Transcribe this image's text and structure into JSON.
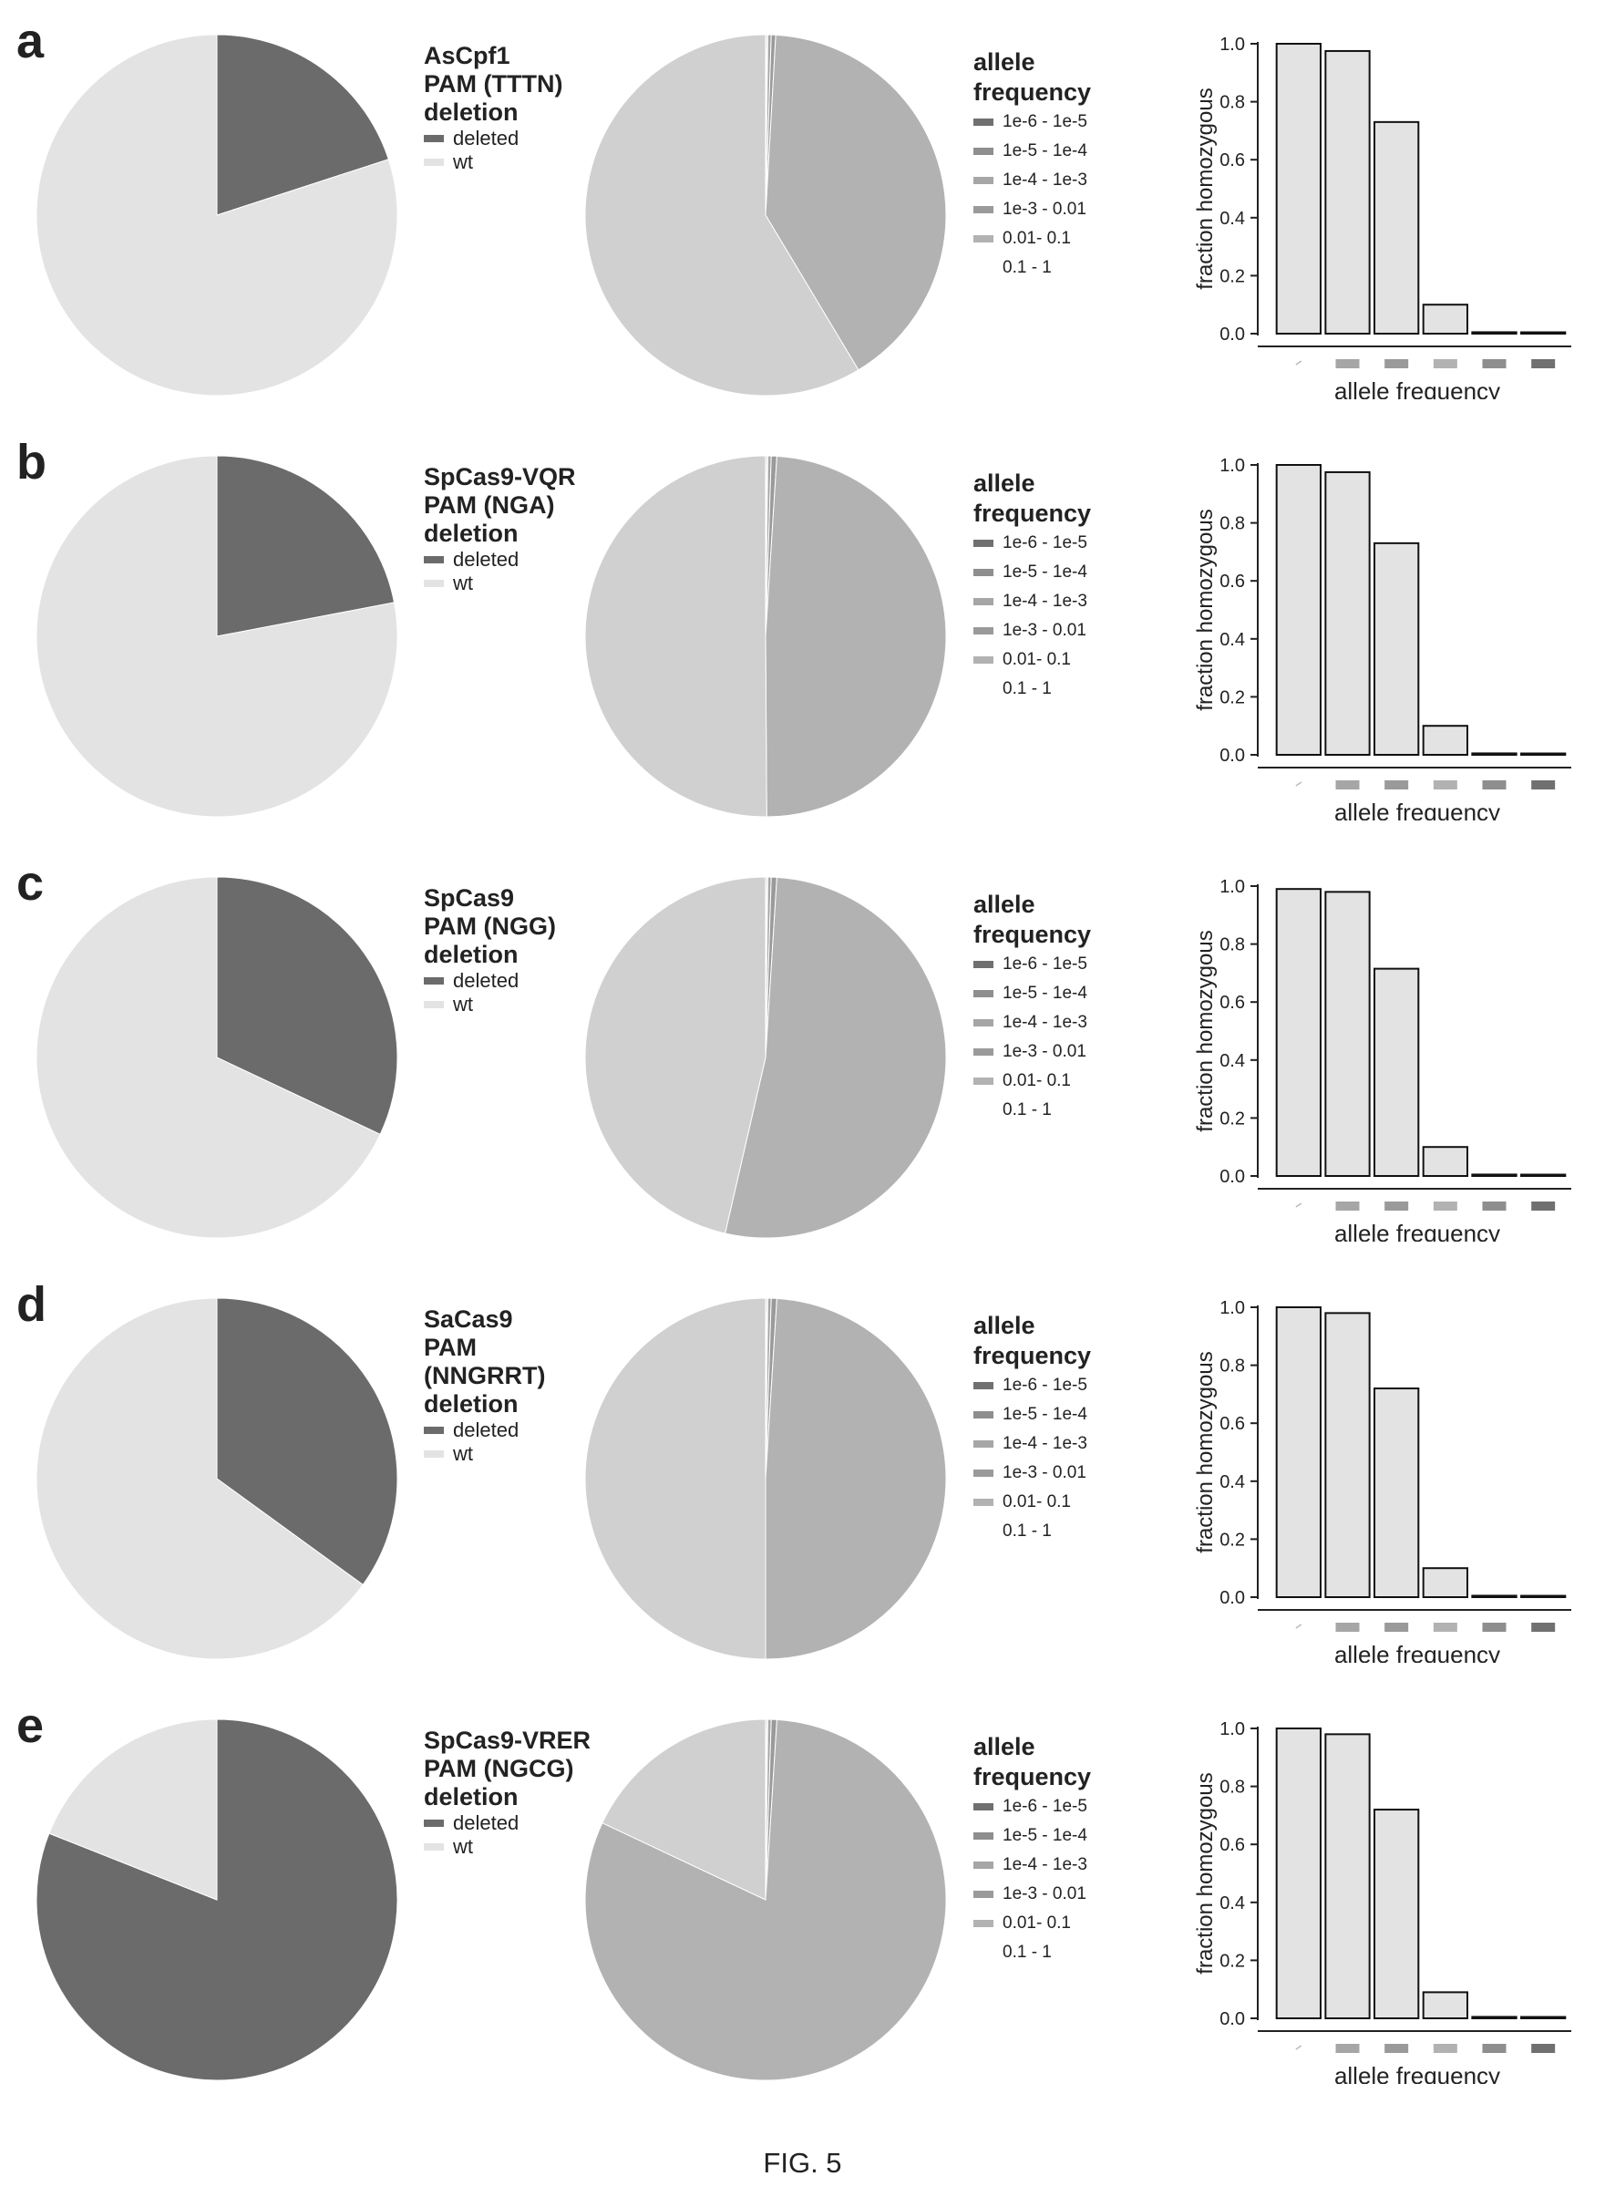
{
  "figure_caption": "FIG. 5",
  "colors": {
    "deleted": "#6b6b6b",
    "wt": "#e3e3e3",
    "freq": [
      "#707070",
      "#8e8e8e",
      "#a6a6a6",
      "#9a9a9a",
      "#b2b2b2",
      "#d0d0d0"
    ],
    "bar_fill": "#e3e3e3",
    "bar_stroke": "#111111"
  },
  "allele_legend": {
    "title_line1": "allele",
    "title_line2": "frequency",
    "items": [
      "1e-6 - 1e-5",
      "1e-5 - 1e-4",
      "1e-4 - 1e-3",
      "1e-3 - 0.01",
      "0.01- 0.1",
      "0.1 - 1"
    ]
  },
  "deletion_legend": {
    "deleted": "deleted",
    "wt": "wt"
  },
  "panels": [
    {
      "letter": "a",
      "title_lines": [
        "AsCpf1",
        "PAM (TTTN)",
        "deletion"
      ]
    },
    {
      "letter": "b",
      "title_lines": [
        "SpCas9-VQR",
        "PAM (NGA)",
        "deletion"
      ]
    },
    {
      "letter": "c",
      "title_lines": [
        "SpCas9",
        "PAM (NGG)",
        "deletion"
      ]
    },
    {
      "letter": "d",
      "title_lines": [
        "SaCas9",
        "PAM",
        "(NNGRRT)",
        "deletion"
      ]
    },
    {
      "letter": "e",
      "title_lines": [
        "SpCas9-VRER",
        "PAM (NGCG)",
        "deletion"
      ]
    }
  ],
  "chart_data": [
    {
      "type": "pie",
      "panel": "a",
      "chart": "deletion",
      "labels": [
        "deleted",
        "wt"
      ],
      "values": [
        20,
        80
      ]
    },
    {
      "type": "pie",
      "panel": "a",
      "chart": "allele frequency",
      "labels": [
        "1e-6 - 1e-5",
        "1e-5 - 1e-4",
        "1e-4 - 1e-3",
        "1e-3 - 0.01",
        "0.01- 0.1",
        "0.1 - 1"
      ],
      "values": [
        0.1,
        0.1,
        0.3,
        0.4,
        40.5,
        58.6
      ]
    },
    {
      "type": "bar",
      "panel": "a",
      "xlabel": "allele frequency",
      "ylabel": "fraction homozygous",
      "ylim": [
        0,
        1.0
      ],
      "yticks": [
        "0.0",
        "0.2",
        "0.4",
        "0.6",
        "0.8",
        "1.0"
      ],
      "values": [
        1.0,
        0.975,
        0.73,
        0.1,
        0.005,
        0.002
      ]
    },
    {
      "type": "pie",
      "panel": "b",
      "chart": "deletion",
      "labels": [
        "deleted",
        "wt"
      ],
      "values": [
        22,
        78
      ]
    },
    {
      "type": "pie",
      "panel": "b",
      "chart": "allele frequency",
      "labels": [
        "1e-6 - 1e-5",
        "1e-5 - 1e-4",
        "1e-4 - 1e-3",
        "1e-3 - 0.01",
        "0.01- 0.1",
        "0.1 - 1"
      ],
      "values": [
        0.1,
        0.1,
        0.3,
        0.5,
        48.9,
        50.1
      ]
    },
    {
      "type": "bar",
      "panel": "b",
      "xlabel": "allele frequency",
      "ylabel": "fraction homozygous",
      "ylim": [
        0,
        1.0
      ],
      "yticks": [
        "0.0",
        "0.2",
        "0.4",
        "0.6",
        "0.8",
        "1.0"
      ],
      "values": [
        1.0,
        0.975,
        0.73,
        0.1,
        0.005,
        0.002
      ]
    },
    {
      "type": "pie",
      "panel": "c",
      "chart": "deletion",
      "labels": [
        "deleted",
        "wt"
      ],
      "values": [
        32,
        68
      ]
    },
    {
      "type": "pie",
      "panel": "c",
      "chart": "allele frequency",
      "labels": [
        "1e-6 - 1e-5",
        "1e-5 - 1e-4",
        "1e-4 - 1e-3",
        "1e-3 - 0.01",
        "0.01- 0.1",
        "0.1 - 1"
      ],
      "values": [
        0.1,
        0.1,
        0.3,
        0.5,
        52.6,
        46.4
      ]
    },
    {
      "type": "bar",
      "panel": "c",
      "xlabel": "allele frequency",
      "ylabel": "fraction homozygous",
      "ylim": [
        0,
        1.0
      ],
      "yticks": [
        "0.0",
        "0.2",
        "0.4",
        "0.6",
        "0.8",
        "1.0"
      ],
      "values": [
        0.99,
        0.98,
        0.715,
        0.1,
        0.005,
        0.002
      ]
    },
    {
      "type": "pie",
      "panel": "d",
      "chart": "deletion",
      "labels": [
        "deleted",
        "wt"
      ],
      "values": [
        35,
        65
      ]
    },
    {
      "type": "pie",
      "panel": "d",
      "chart": "allele frequency",
      "labels": [
        "1e-6 - 1e-5",
        "1e-5 - 1e-4",
        "1e-4 - 1e-3",
        "1e-3 - 0.01",
        "0.01- 0.1",
        "0.1 - 1"
      ],
      "values": [
        0.1,
        0.1,
        0.3,
        0.5,
        49.0,
        50.0
      ]
    },
    {
      "type": "bar",
      "panel": "d",
      "xlabel": "allele frequency",
      "ylabel": "fraction homozygous",
      "ylim": [
        0,
        1.0
      ],
      "yticks": [
        "0.0",
        "0.2",
        "0.4",
        "0.6",
        "0.8",
        "1.0"
      ],
      "values": [
        1.0,
        0.98,
        0.72,
        0.1,
        0.005,
        0.002
      ]
    },
    {
      "type": "pie",
      "panel": "e",
      "chart": "deletion",
      "labels": [
        "deleted",
        "wt"
      ],
      "values": [
        81,
        19
      ]
    },
    {
      "type": "pie",
      "panel": "e",
      "chart": "allele frequency",
      "labels": [
        "1e-6 - 1e-5",
        "1e-5 - 1e-4",
        "1e-4 - 1e-3",
        "1e-3 - 0.01",
        "0.01- 0.1",
        "0.1 - 1"
      ],
      "values": [
        0.1,
        0.1,
        0.3,
        0.5,
        81.0,
        18.0
      ]
    },
    {
      "type": "bar",
      "panel": "e",
      "xlabel": "allele frequency",
      "ylabel": "fraction homozygous",
      "ylim": [
        0,
        1.0
      ],
      "yticks": [
        "0.0",
        "0.2",
        "0.4",
        "0.6",
        "0.8",
        "1.0"
      ],
      "values": [
        1.0,
        0.98,
        0.72,
        0.09,
        0.005,
        0.002
      ]
    }
  ]
}
